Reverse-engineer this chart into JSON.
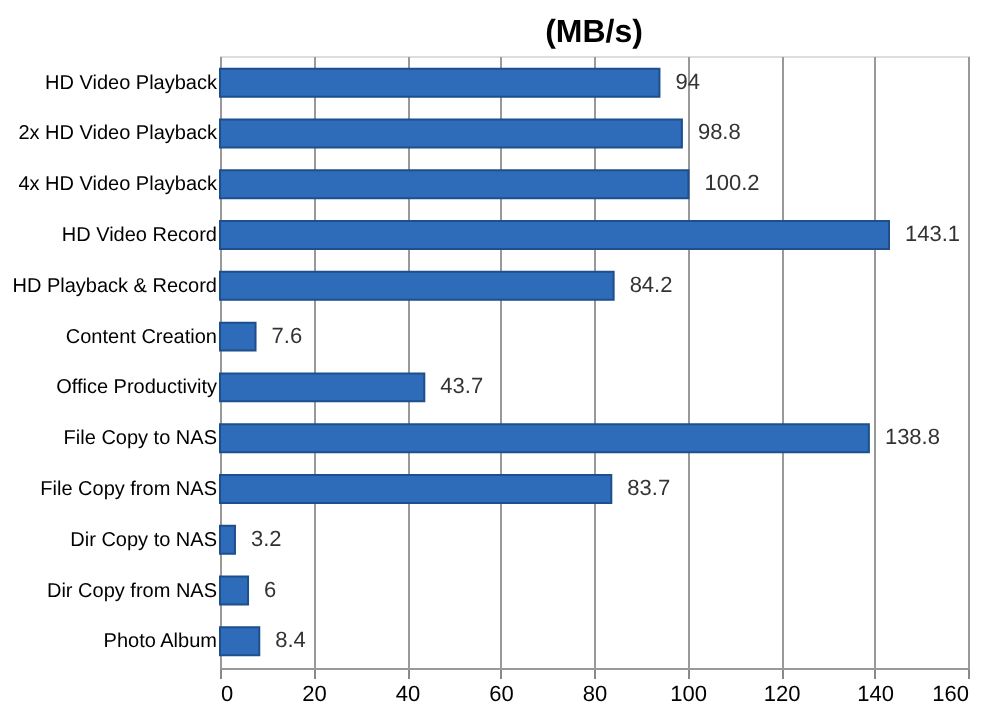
{
  "chart_data": {
    "type": "bar",
    "orientation": "horizontal",
    "title": "(MB/s)",
    "categories": [
      "HD Video Playback",
      "2x HD Video Playback",
      "4x HD Video Playback",
      "HD Video Record",
      "HD Playback & Record",
      "Content Creation",
      "Office Productivity",
      "File Copy to NAS",
      "File Copy from NAS",
      "Dir Copy to NAS",
      "Dir Copy from NAS",
      "Photo Album"
    ],
    "values": [
      94,
      98.8,
      100.2,
      143.1,
      84.2,
      7.6,
      43.7,
      138.8,
      83.7,
      3.2,
      6,
      8.4
    ],
    "color": "#2e6bb8",
    "xlim": [
      0,
      160
    ],
    "xticks": [
      0,
      20,
      40,
      60,
      80,
      100,
      120,
      140,
      160
    ],
    "grid": "x",
    "data_labels": true
  }
}
